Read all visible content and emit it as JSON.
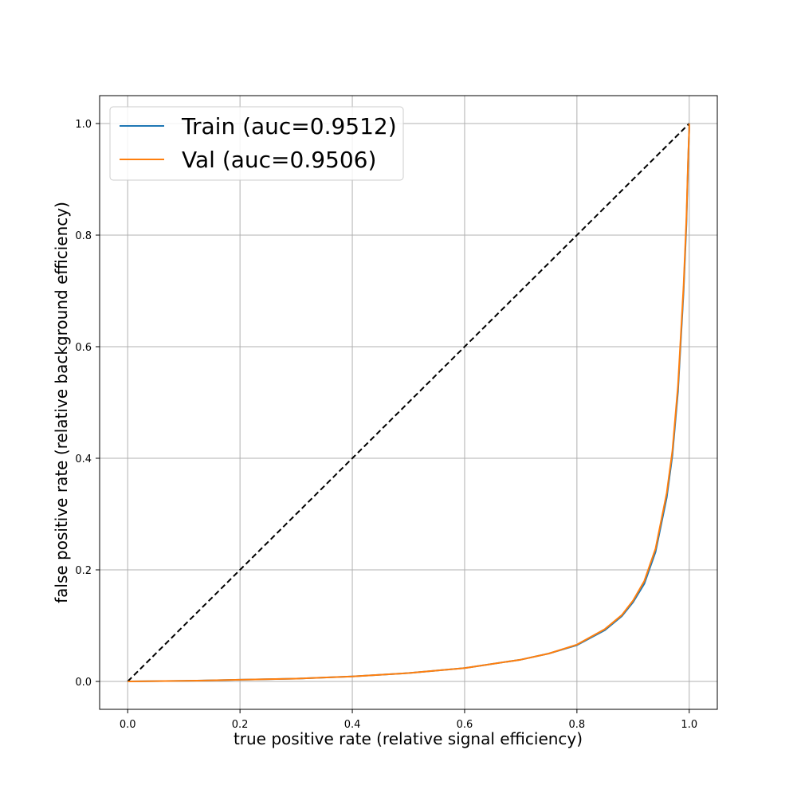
{
  "chart_data": {
    "type": "line",
    "title": "",
    "xlabel": "true positive rate (relative signal efficiency)",
    "ylabel": "false positive rate (relative background efficiency)",
    "xlim": [
      -0.05,
      1.05
    ],
    "ylim": [
      -0.05,
      1.05
    ],
    "x_ticks": [
      0.0,
      0.2,
      0.4,
      0.6,
      0.8,
      1.0
    ],
    "y_ticks": [
      0.0,
      0.2,
      0.4,
      0.6,
      0.8,
      1.0
    ],
    "x_tick_labels": [
      "0.0",
      "0.2",
      "0.4",
      "0.6",
      "0.8",
      "1.0"
    ],
    "y_tick_labels": [
      "0.0",
      "0.2",
      "0.4",
      "0.6",
      "0.8",
      "1.0"
    ],
    "grid": true,
    "legend_position": "top-left",
    "series": [
      {
        "name": "Train (auc=0.9512)",
        "color": "#1f77b4",
        "x": [
          0.0,
          0.1,
          0.2,
          0.3,
          0.4,
          0.5,
          0.6,
          0.7,
          0.75,
          0.8,
          0.85,
          0.88,
          0.9,
          0.92,
          0.94,
          0.96,
          0.97,
          0.98,
          0.99,
          0.995,
          0.998,
          1.0,
          1.0
        ],
        "y": [
          0.0,
          0.001,
          0.003,
          0.005,
          0.009,
          0.015,
          0.024,
          0.039,
          0.05,
          0.065,
          0.092,
          0.117,
          0.142,
          0.175,
          0.232,
          0.33,
          0.405,
          0.52,
          0.7,
          0.82,
          0.93,
          0.99,
          1.0
        ]
      },
      {
        "name": "Val (auc=0.9506)",
        "color": "#ff7f0e",
        "x": [
          0.0,
          0.1,
          0.2,
          0.3,
          0.4,
          0.5,
          0.6,
          0.7,
          0.75,
          0.8,
          0.85,
          0.88,
          0.9,
          0.92,
          0.94,
          0.96,
          0.97,
          0.98,
          0.99,
          0.995,
          0.998,
          1.0,
          1.0
        ],
        "y": [
          0.0,
          0.001,
          0.003,
          0.005,
          0.009,
          0.015,
          0.024,
          0.039,
          0.05,
          0.066,
          0.094,
          0.119,
          0.145,
          0.18,
          0.238,
          0.338,
          0.413,
          0.53,
          0.71,
          0.83,
          0.935,
          0.99,
          1.0
        ]
      },
      {
        "name": "",
        "color": "#000000",
        "style": "dashed",
        "x": [
          0.0,
          1.0
        ],
        "y": [
          0.0,
          1.0
        ]
      }
    ]
  }
}
